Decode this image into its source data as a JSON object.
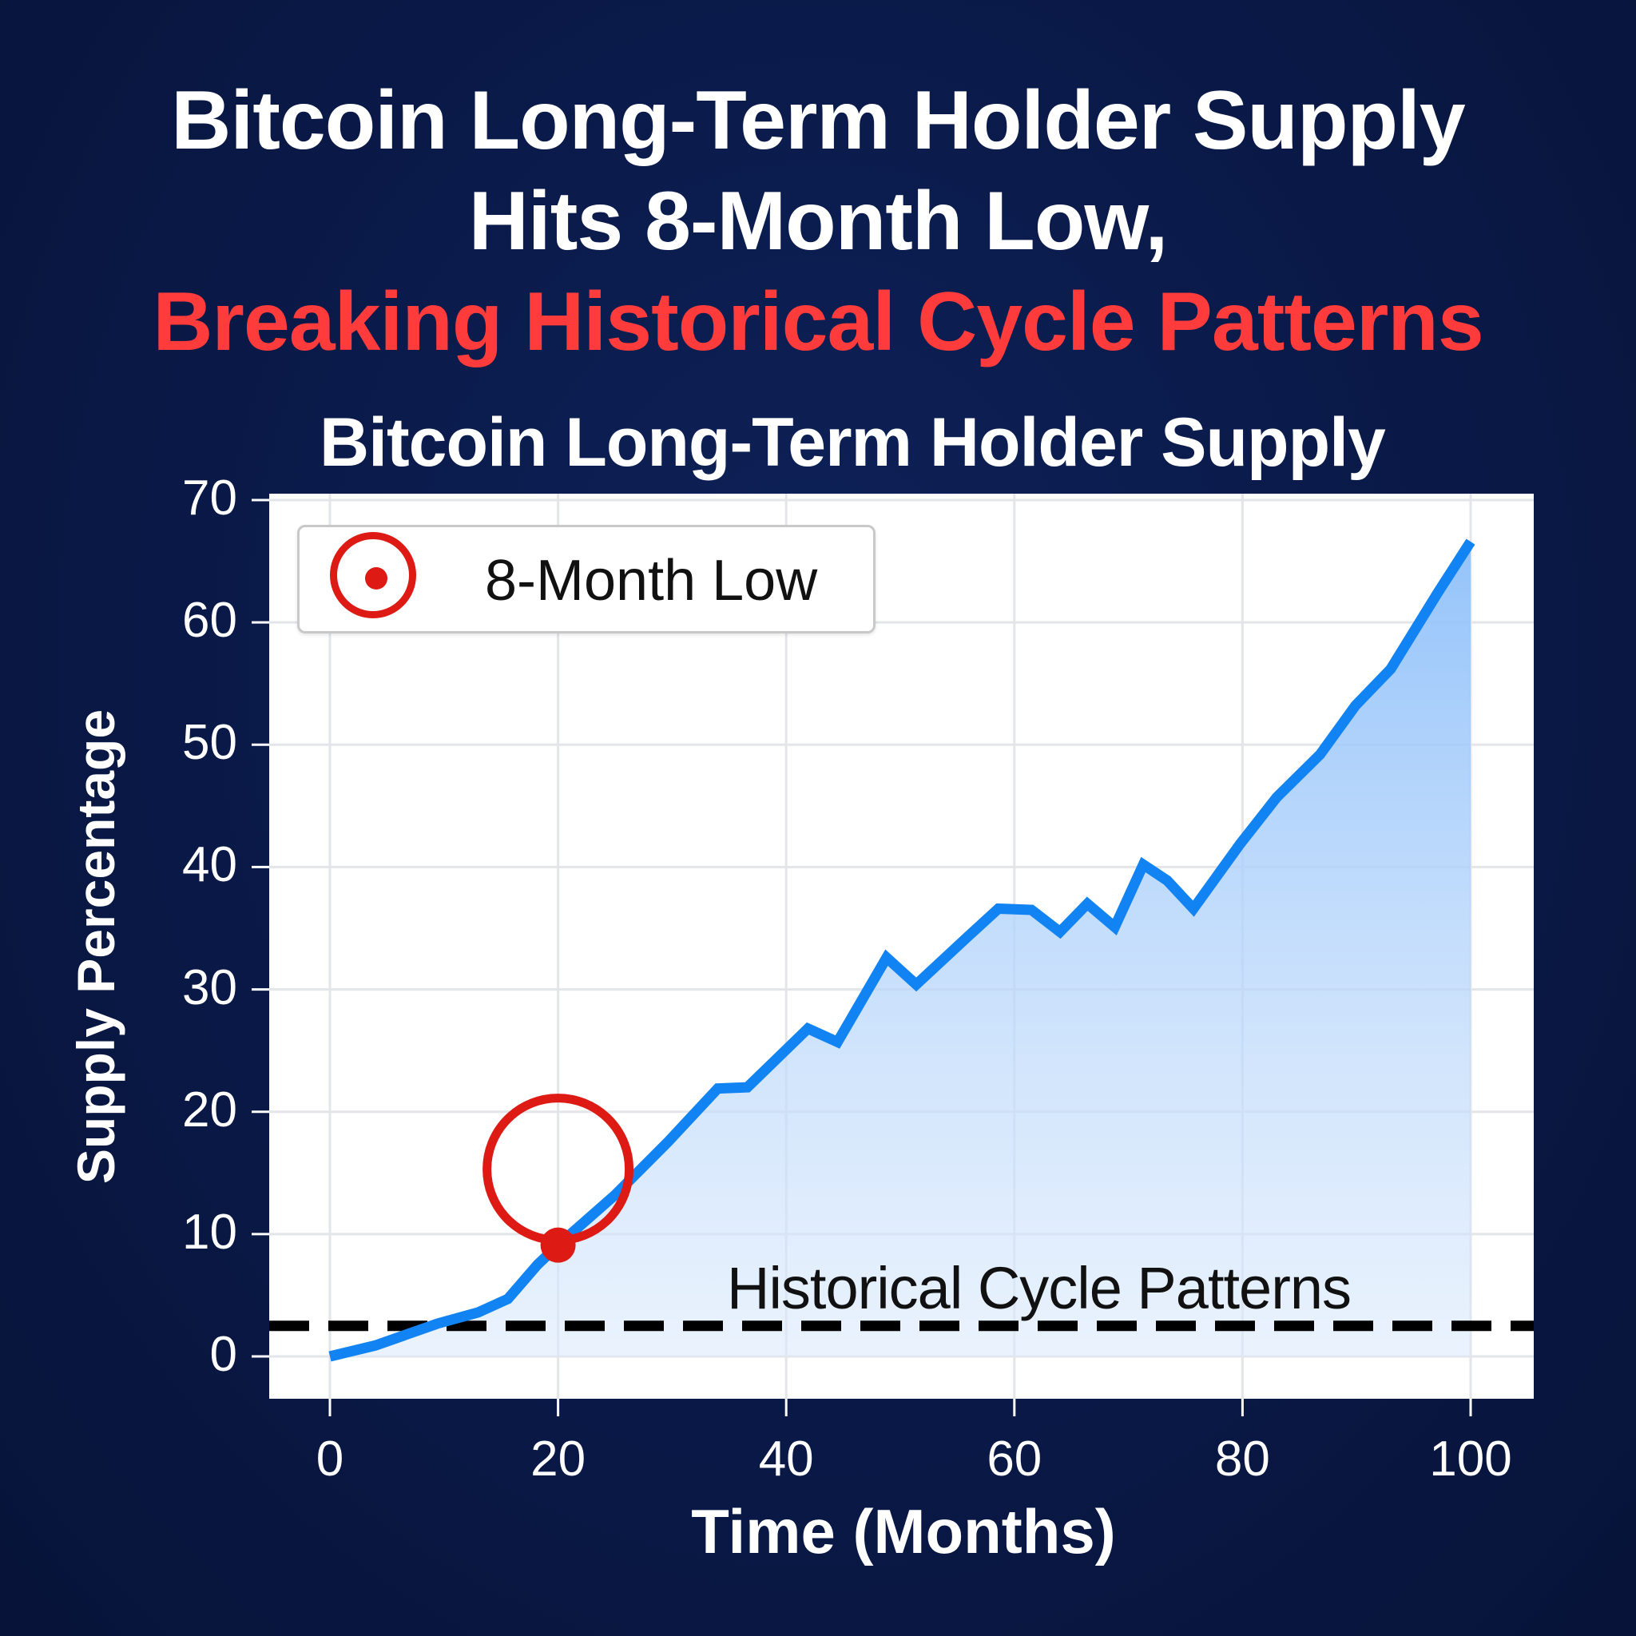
{
  "headline": {
    "line1": "Bitcoin Long-Term Holder Supply",
    "line2": "Hits 8-Month Low,",
    "line3": "Breaking Historical Cycle Patterns"
  },
  "colors": {
    "background": "#0a1a4a",
    "headline": "#ffffff",
    "headline_accent": "#ff3b3b",
    "line": "#1283f2",
    "fill": "#9cc9fb",
    "marker": "#dd1a14",
    "dashed_line": "#000000"
  },
  "legend": {
    "label": "8-Month Low",
    "icon": "target-marker-icon"
  },
  "annotation": {
    "label": "Historical Cycle Patterns"
  },
  "chart_data": {
    "type": "area",
    "title": "Bitcoin Long-Term Holder Supply",
    "xlabel": "Time (Months)",
    "ylabel": "Supply Percentage",
    "xlim": [
      0,
      100
    ],
    "ylim": [
      0,
      70
    ],
    "xticks": [
      0,
      20,
      40,
      60,
      80,
      100
    ],
    "yticks": [
      0,
      10,
      20,
      30,
      40,
      50,
      60,
      70
    ],
    "grid": true,
    "legend_position": "upper left",
    "series": [
      {
        "name": "Long-Term Holder Supply",
        "x": [
          0,
          4,
          9.5,
          13,
          15.6,
          18.2,
          20,
          25,
          29.6,
          34,
          36.6,
          41.9,
          44.5,
          48.8,
          51.4,
          55.9,
          58.6,
          61.5,
          64,
          66.4,
          68.8,
          71.3,
          73.4,
          75.7,
          79.8,
          83,
          86.8,
          89.9,
          93,
          97.1,
          100
        ],
        "values": [
          0,
          0.9,
          2.7,
          3.6,
          4.7,
          7.5,
          9.1,
          13.2,
          17.5,
          21.9,
          22,
          26.8,
          25.7,
          32.6,
          30.4,
          34.3,
          36.6,
          36.5,
          34.7,
          37,
          35.1,
          40.2,
          38.9,
          36.6,
          41.9,
          45.7,
          49.2,
          53.2,
          56.2,
          62.4,
          66.6
        ]
      }
    ],
    "markers": [
      {
        "name": "8-Month Low",
        "x": 20,
        "y": 9.1
      }
    ],
    "reference_lines": [
      {
        "name": "Historical Cycle Patterns",
        "y": 2.5,
        "style": "dashed"
      }
    ]
  }
}
